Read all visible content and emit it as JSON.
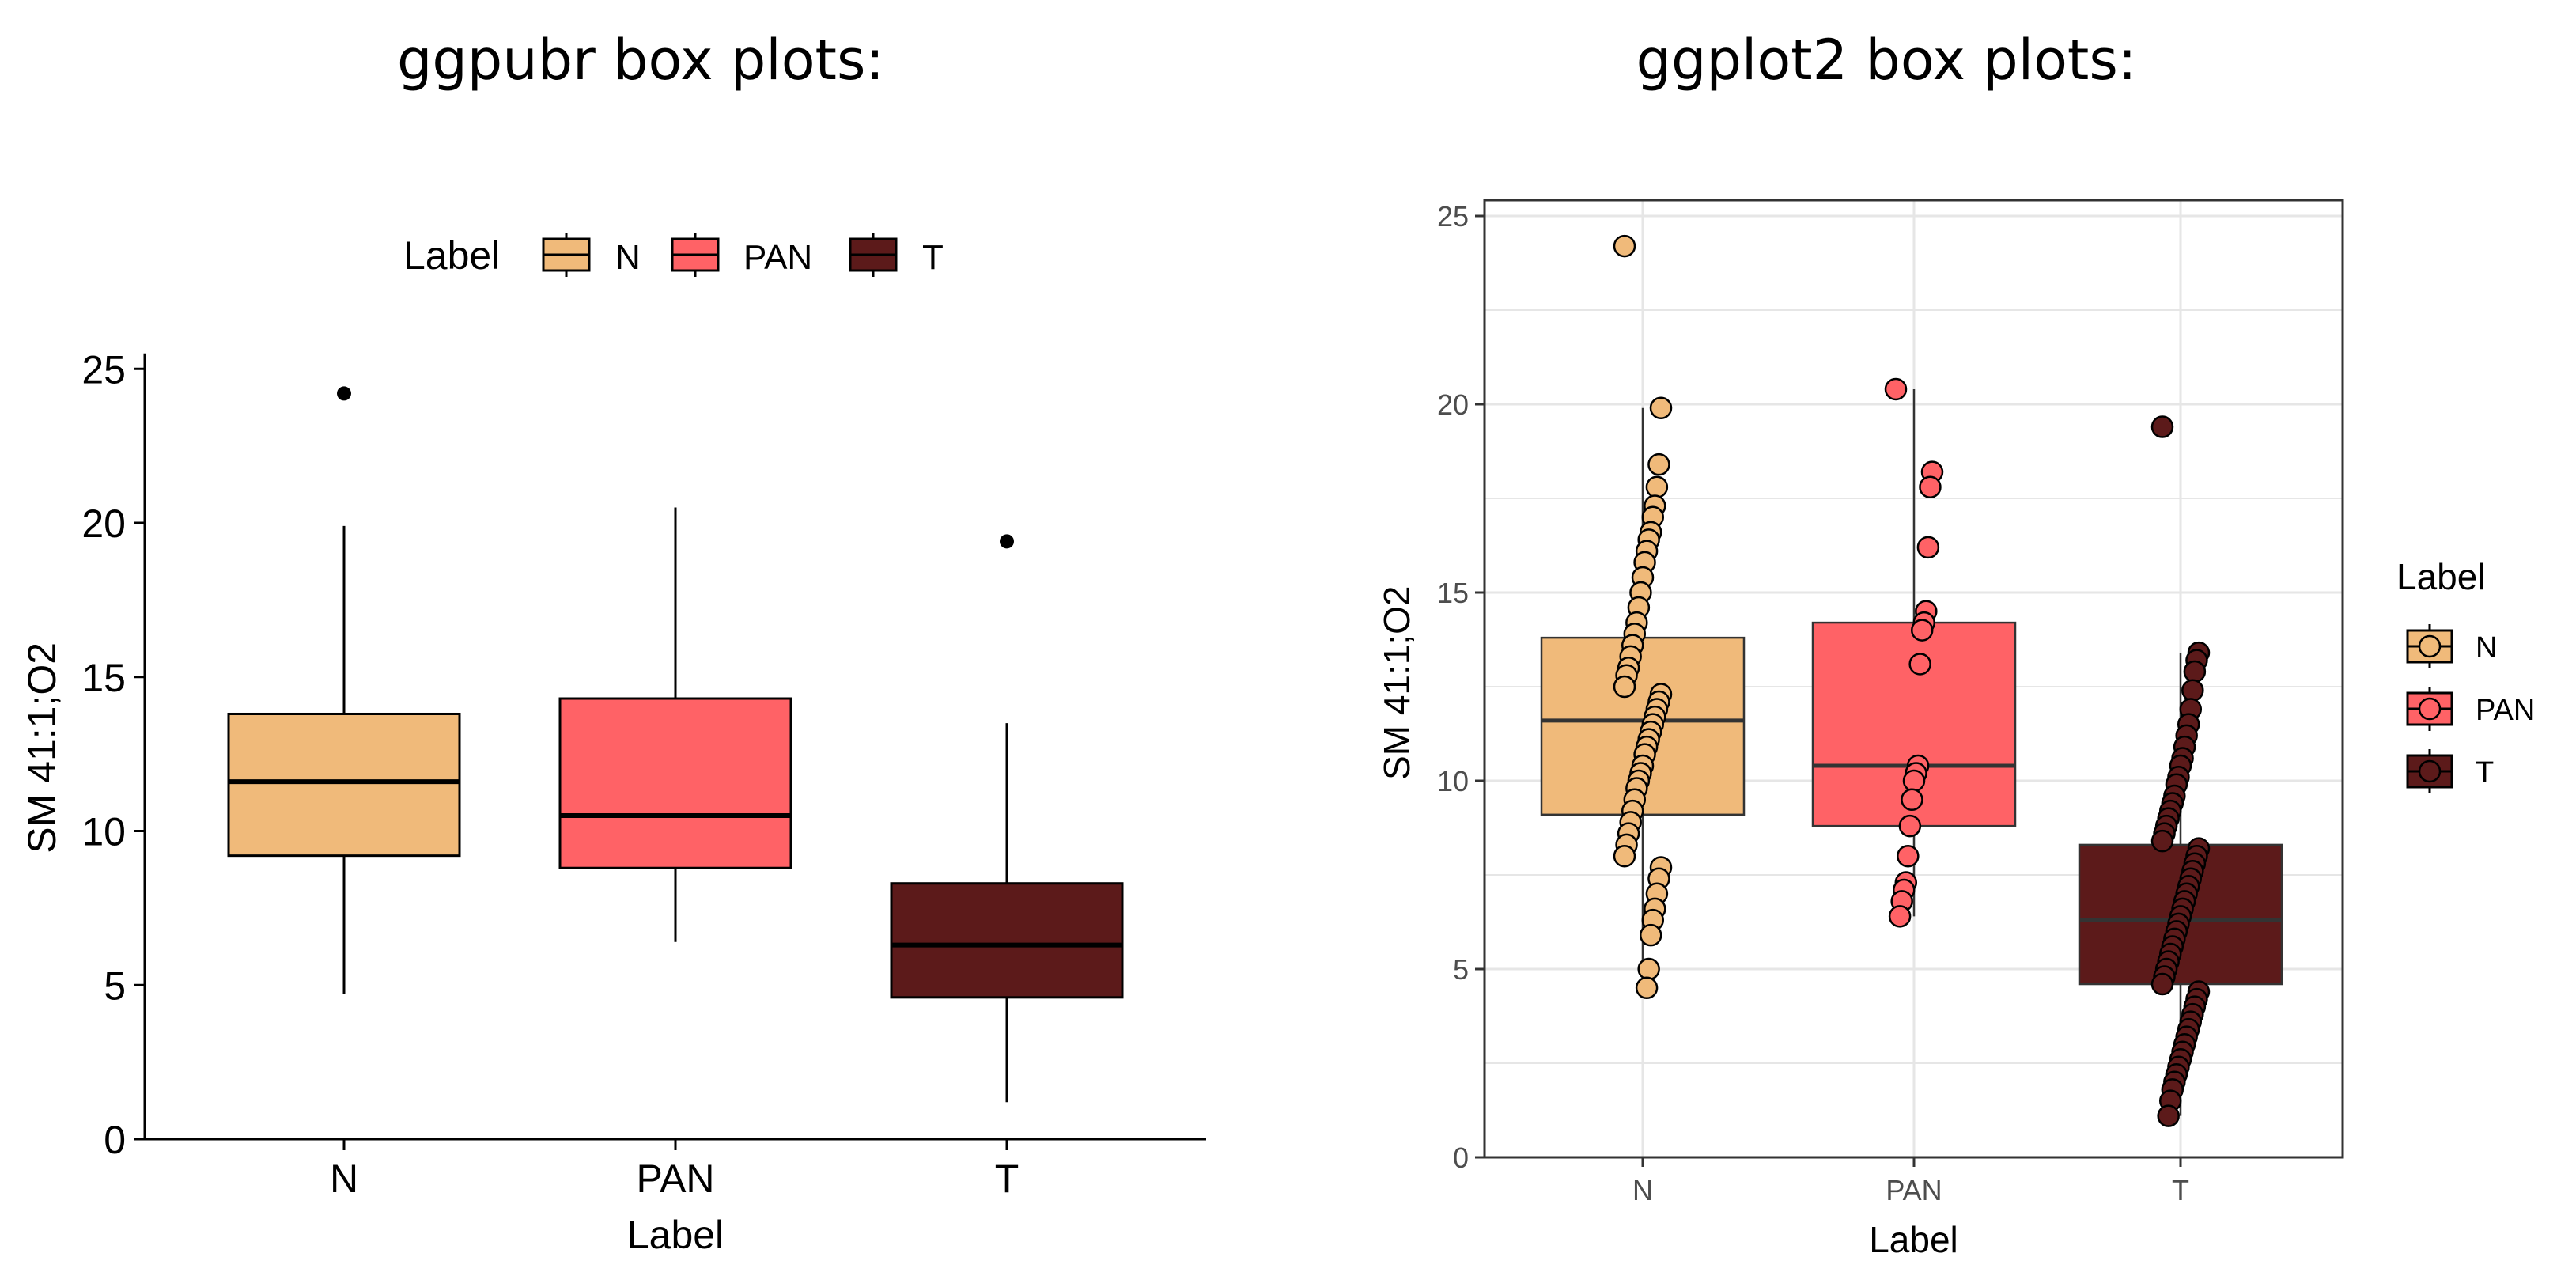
{
  "headings": {
    "left": "ggpubr box plots:",
    "right": "ggplot2 box plots:"
  },
  "colors": {
    "N": "#F0BA7A",
    "PAN": "#FF6266",
    "T": "#5C1A1A",
    "outline": "#000000",
    "grid": "#E6E6E6"
  },
  "chart_data": [
    {
      "type": "box",
      "library": "ggpubr",
      "title": "",
      "xlabel": "Label",
      "ylabel": "SM 41:1;O2",
      "ylim": [
        0,
        25.5
      ],
      "yticks": [
        0,
        5,
        10,
        15,
        20,
        25
      ],
      "categories": [
        "N",
        "PAN",
        "T"
      ],
      "grid": false,
      "legend": {
        "position": "top",
        "title": "Label",
        "entries": [
          "N",
          "PAN",
          "T"
        ]
      },
      "boxes": [
        {
          "category": "N",
          "min": 4.7,
          "q1": 9.2,
          "median": 11.6,
          "q3": 13.8,
          "max": 19.9,
          "outliers": [
            24.2
          ]
        },
        {
          "category": "PAN",
          "min": 6.4,
          "q1": 8.8,
          "median": 10.5,
          "q3": 14.3,
          "max": 20.5,
          "outliers": []
        },
        {
          "category": "T",
          "min": 1.2,
          "q1": 4.6,
          "median": 6.3,
          "q3": 8.3,
          "max": 13.5,
          "outliers": [
            19.4
          ]
        }
      ]
    },
    {
      "type": "box",
      "library": "ggplot2",
      "title": "",
      "xlabel": "Label",
      "ylabel": "SM 41:1;O2",
      "ylim": [
        0,
        25.2
      ],
      "yticks": [
        0,
        5,
        10,
        15,
        20,
        25
      ],
      "categories": [
        "N",
        "PAN",
        "T"
      ],
      "grid": true,
      "legend": {
        "position": "right",
        "title": "Label",
        "entries": [
          "N",
          "PAN",
          "T"
        ]
      },
      "boxes": [
        {
          "category": "N",
          "q1": 9.1,
          "median": 11.6,
          "q3": 13.8,
          "min": 4.5,
          "max": 19.9
        },
        {
          "category": "PAN",
          "q1": 8.8,
          "median": 10.4,
          "q3": 14.2,
          "min": 6.4,
          "max": 20.4
        },
        {
          "category": "T",
          "q1": 4.6,
          "median": 6.3,
          "q3": 8.3,
          "min": 1.1,
          "max": 13.4
        }
      ],
      "points": {
        "N": [
          24.2,
          19.9,
          18.4,
          17.8,
          17.3,
          17.0,
          16.6,
          16.4,
          16.1,
          15.8,
          15.4,
          15.0,
          14.6,
          14.2,
          13.9,
          13.6,
          13.3,
          13.0,
          12.8,
          12.5,
          12.3,
          12.1,
          11.9,
          11.7,
          11.5,
          11.3,
          11.1,
          10.9,
          10.7,
          10.4,
          10.2,
          10.0,
          9.8,
          9.5,
          9.2,
          8.9,
          8.6,
          8.3,
          8.0,
          7.7,
          7.4,
          7.0,
          6.6,
          6.3,
          5.9,
          5.0,
          4.5
        ],
        "PAN": [
          20.4,
          18.2,
          17.8,
          16.2,
          14.5,
          14.2,
          14.0,
          13.1,
          10.4,
          10.2,
          10.0,
          9.5,
          8.8,
          8.0,
          7.3,
          7.1,
          6.8,
          6.4
        ],
        "T": [
          19.4,
          13.4,
          13.2,
          12.9,
          12.4,
          11.9,
          11.5,
          11.2,
          10.9,
          10.6,
          10.4,
          10.1,
          9.9,
          9.6,
          9.4,
          9.2,
          9.0,
          8.8,
          8.6,
          8.4,
          8.2,
          8.0,
          7.8,
          7.6,
          7.4,
          7.2,
          7.0,
          6.8,
          6.6,
          6.4,
          6.2,
          6.0,
          5.8,
          5.6,
          5.4,
          5.2,
          5.0,
          4.8,
          4.6,
          4.4,
          4.2,
          4.0,
          3.8,
          3.6,
          3.4,
          3.2,
          3.0,
          2.8,
          2.6,
          2.4,
          2.2,
          2.0,
          1.8,
          1.5,
          1.1
        ]
      }
    }
  ]
}
